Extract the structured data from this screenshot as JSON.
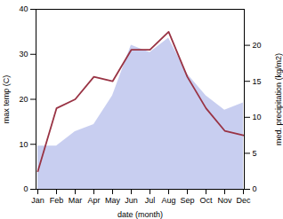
{
  "chart_data": {
    "type": "line",
    "xlabel": "date (month)",
    "ylabel": "max temp (C)",
    "y2label": "med. precipitation (kg/m2)",
    "categories": [
      "Jan",
      "Feb",
      "Mar",
      "Apr",
      "May",
      "Jun",
      "Jul",
      "Aug",
      "Sep",
      "Oct",
      "Nov",
      "Dec"
    ],
    "series": [
      {
        "type": "area",
        "axis": "y2",
        "color": "#aab4e8",
        "values": [
          6,
          6,
          8,
          9,
          13,
          20,
          19,
          21,
          16,
          13,
          11,
          12
        ]
      },
      {
        "type": "line",
        "color": "#993344",
        "values": [
          4,
          18,
          20,
          25,
          24,
          31,
          31,
          35,
          25,
          18,
          13,
          12
        ]
      }
    ],
    "ylim": [
      0,
      40
    ],
    "yticks": [
      0,
      10,
      20,
      30,
      40
    ],
    "y2lim": [
      0,
      25
    ],
    "y2ticks": [
      0,
      5,
      10,
      15,
      20
    ],
    "grid": false
  }
}
